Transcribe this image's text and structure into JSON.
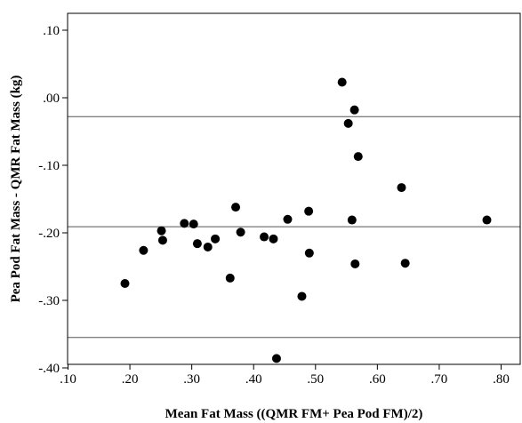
{
  "chart_data": {
    "type": "scatter",
    "title": "",
    "xlabel": "Mean Fat Mass ((QMR FM+ Pea Pod FM)/2)",
    "ylabel": "Pea Pod Fat Mass - QMR Fat Mass (kg)",
    "xlim": [
      0.1,
      0.82
    ],
    "ylim": [
      -0.4,
      0.125
    ],
    "x_ticks": [
      0.1,
      0.2,
      0.3,
      0.4,
      0.5,
      0.6,
      0.7,
      0.8
    ],
    "x_tick_labels": [
      ".10",
      ".20",
      ".30",
      ".40",
      ".50",
      ".60",
      ".70",
      ".80"
    ],
    "y_ticks": [
      0.1,
      0.0,
      -0.1,
      -0.2,
      -0.3,
      -0.4
    ],
    "y_tick_labels": [
      ".10",
      ".00",
      "-.10",
      "-.20",
      "-.30",
      "-.40"
    ],
    "grid": false,
    "reference_lines": [
      -0.028,
      -0.191,
      -0.355
    ],
    "points": [
      {
        "x": 0.192,
        "y": -0.275
      },
      {
        "x": 0.222,
        "y": -0.226
      },
      {
        "x": 0.251,
        "y": -0.197
      },
      {
        "x": 0.253,
        "y": -0.211
      },
      {
        "x": 0.288,
        "y": -0.186
      },
      {
        "x": 0.303,
        "y": -0.187
      },
      {
        "x": 0.309,
        "y": -0.216
      },
      {
        "x": 0.326,
        "y": -0.221
      },
      {
        "x": 0.338,
        "y": -0.209
      },
      {
        "x": 0.362,
        "y": -0.267
      },
      {
        "x": 0.371,
        "y": -0.162
      },
      {
        "x": 0.379,
        "y": -0.199
      },
      {
        "x": 0.417,
        "y": -0.206
      },
      {
        "x": 0.432,
        "y": -0.209
      },
      {
        "x": 0.437,
        "y": -0.386
      },
      {
        "x": 0.455,
        "y": -0.18
      },
      {
        "x": 0.478,
        "y": -0.294
      },
      {
        "x": 0.489,
        "y": -0.168
      },
      {
        "x": 0.49,
        "y": -0.23
      },
      {
        "x": 0.543,
        "y": 0.023
      },
      {
        "x": 0.553,
        "y": -0.038
      },
      {
        "x": 0.559,
        "y": -0.181
      },
      {
        "x": 0.563,
        "y": -0.018
      },
      {
        "x": 0.564,
        "y": -0.246
      },
      {
        "x": 0.569,
        "y": -0.087
      },
      {
        "x": 0.639,
        "y": -0.133
      },
      {
        "x": 0.645,
        "y": -0.245
      },
      {
        "x": 0.777,
        "y": -0.181
      }
    ]
  }
}
